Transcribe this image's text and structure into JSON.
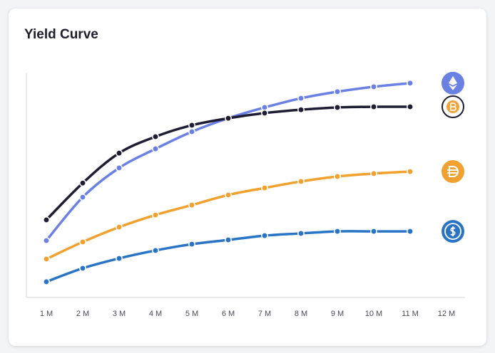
{
  "chart_data": {
    "type": "line",
    "title": "Yield Curve",
    "categories": [
      "1 M",
      "2 M",
      "3 M",
      "4 M",
      "5 M",
      "6 M",
      "7 M",
      "8 M",
      "9 M",
      "10 M",
      "11 M",
      "12 M"
    ],
    "ylim": [
      0,
      100
    ],
    "series": [
      {
        "color": "#6a80e3",
        "values": [
          25.3,
          44.6,
          57.6,
          66.1,
          73.7,
          79.7,
          84.5,
          88.6,
          91.5,
          93.7,
          95.3,
          null
        ]
      },
      {
        "color": "#1f1d33",
        "values": [
          34.5,
          50.9,
          64.2,
          71.5,
          76.6,
          79.7,
          82.0,
          83.5,
          84.5,
          84.8,
          84.8,
          null
        ]
      },
      {
        "color": "#f0a12f",
        "values": [
          17.1,
          24.7,
          31.3,
          36.7,
          41.1,
          45.6,
          48.7,
          51.6,
          53.8,
          55.1,
          56.0,
          null
        ]
      },
      {
        "color": "#2a74c5",
        "values": [
          7.0,
          13.0,
          17.4,
          20.9,
          23.7,
          25.6,
          27.5,
          28.5,
          29.4,
          29.4,
          29.4,
          null
        ]
      }
    ]
  }
}
